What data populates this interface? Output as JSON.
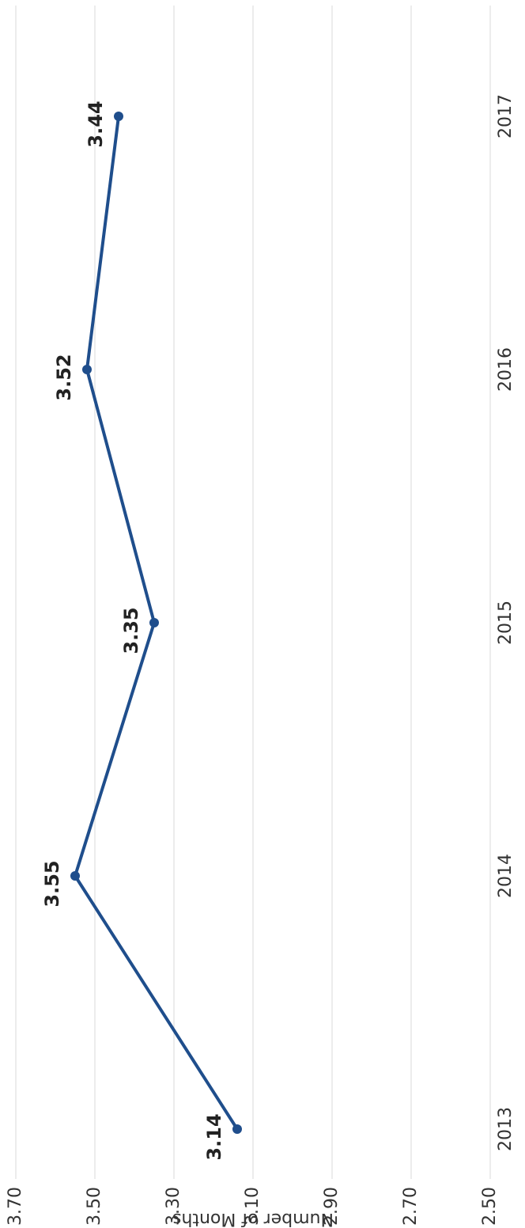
{
  "chart_data": {
    "type": "line",
    "y_label": "Number of Months",
    "categories": [
      "2013",
      "2014",
      "2015",
      "2016",
      "2017"
    ],
    "series": [
      {
        "name": null,
        "color": "#1f4e8c",
        "values": [
          3.14,
          3.55,
          3.35,
          3.52,
          3.44
        ]
      }
    ],
    "ylim": [
      2.5,
      3.7
    ],
    "yticks": [
      {
        "value": 2.5,
        "label": "2.50"
      },
      {
        "value": 2.7,
        "label": "2.70"
      },
      {
        "value": 2.9,
        "label": "2.90"
      },
      {
        "value": 3.1,
        "label": "3.10"
      },
      {
        "value": 3.3,
        "label": "3.30"
      },
      {
        "value": 3.5,
        "label": "3.50"
      },
      {
        "value": 3.7,
        "label": "3.70"
      }
    ],
    "grid": true
  }
}
